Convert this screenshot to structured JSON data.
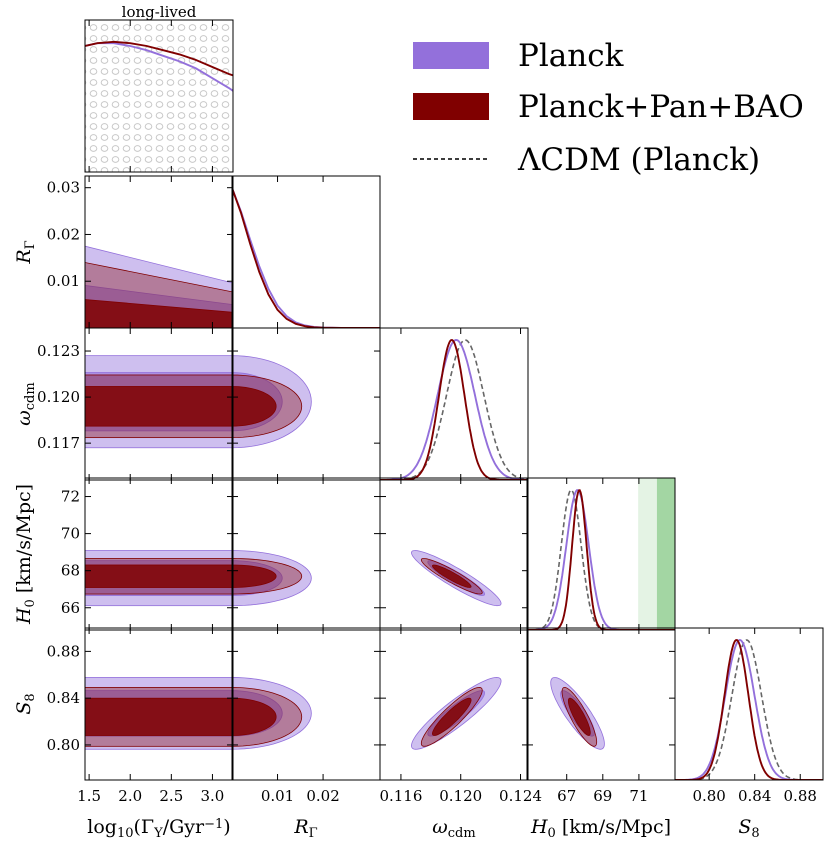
{
  "chart_data": {
    "type": "corner",
    "params": [
      "log10(Γ_Y/Gyr^-1)",
      "R_Γ",
      "ω_cdm",
      "H_0",
      "S_8"
    ],
    "axis_labels": {
      "log10G": {
        "main": "log",
        "sub1": "10",
        "mid": "(Γ",
        "sub2": "Y",
        "tail": "/Gyr",
        "sup": "−1",
        "end": ")"
      },
      "RG": {
        "main": "R",
        "sub": "Γ"
      },
      "wcdm": {
        "main": "ω",
        "sub": "cdm"
      },
      "H0": {
        "main": "H",
        "sub": "0",
        "unit": "[km/s/Mpc]"
      },
      "S8": {
        "main": "S",
        "sub": "8"
      }
    },
    "ranges": {
      "log10G": [
        1.45,
        3.25
      ],
      "RG": [
        0.0,
        0.0325
      ],
      "wcdm": [
        0.1146,
        0.1245
      ],
      "H0": [
        64.8,
        73.0
      ],
      "S8": [
        0.77,
        0.9
      ]
    },
    "ticks": {
      "log10G": [
        {
          "v": 1.5,
          "t": "1.5"
        },
        {
          "v": 2.0,
          "t": "2.0"
        },
        {
          "v": 2.5,
          "t": "2.5"
        },
        {
          "v": 3.0,
          "t": "3.0"
        }
      ],
      "RG": [
        {
          "v": 0.01,
          "t": "0.01"
        },
        {
          "v": 0.02,
          "t": "0.02"
        },
        {
          "v": 0.03,
          "t": "0.03"
        }
      ],
      "RG_x": [
        {
          "v": 0.01,
          "t": "0.01"
        },
        {
          "v": 0.02,
          "t": "0.02"
        }
      ],
      "wcdm": [
        {
          "v": 0.116,
          "t": "0.116"
        },
        {
          "v": 0.12,
          "t": "0.120"
        },
        {
          "v": 0.124,
          "t": "0.124"
        }
      ],
      "wcdm_y": [
        {
          "v": 0.117,
          "t": "0.117"
        },
        {
          "v": 0.12,
          "t": "0.120"
        },
        {
          "v": 0.123,
          "t": "0.123"
        }
      ],
      "H0_x": [
        {
          "v": 67,
          "t": "67"
        },
        {
          "v": 69,
          "t": "69"
        },
        {
          "v": 71,
          "t": "71"
        }
      ],
      "H0_y": [
        {
          "v": 66,
          "t": "66"
        },
        {
          "v": 68,
          "t": "68"
        },
        {
          "v": 70,
          "t": "70"
        },
        {
          "v": 72,
          "t": "72"
        }
      ],
      "S8": [
        {
          "v": 0.8,
          "t": "0.80"
        },
        {
          "v": 0.84,
          "t": "0.84"
        },
        {
          "v": 0.88,
          "t": "0.88"
        }
      ]
    },
    "prior_region_label": "long-lived",
    "legend": {
      "placement": "top-right",
      "entries": [
        {
          "label": "Planck",
          "color": "#9370DB",
          "style": "patch"
        },
        {
          "label": "Planck+Pan+BAO",
          "color": "#800000",
          "style": "patch"
        },
        {
          "label": "ΛCDM (Planck)",
          "color": "#333333",
          "style": "dashed"
        }
      ]
    },
    "series": [
      {
        "name": "Planck",
        "color": "#9370DB",
        "mean": {
          "log10G": 2.3,
          "RG": 0.0,
          "wcdm": 0.1197,
          "H0": 67.6,
          "S8": 0.827
        },
        "sigma": {
          "log10G": 0.6,
          "RG": 0.0066,
          "wcdm": 0.00125,
          "H0": 0.62,
          "S8": 0.0128
        },
        "marg_1d": {
          "log10G": {
            "x": [
              1.45,
              1.6,
              1.8,
              2.0,
              2.2,
              2.4,
              2.6,
              2.8,
              3.0,
              3.2,
              3.25
            ],
            "y": [
              0.9,
              0.92,
              0.92,
              0.9,
              0.87,
              0.83,
              0.79,
              0.74,
              0.67,
              0.6,
              0.58
            ]
          },
          "RG": {
            "x": [
              0.0,
              0.002,
              0.004,
              0.006,
              0.008,
              0.01,
              0.012,
              0.014,
              0.016,
              0.018,
              0.02,
              0.024,
              0.028,
              0.0325
            ],
            "y": [
              1.0,
              0.83,
              0.63,
              0.44,
              0.28,
              0.16,
              0.085,
              0.04,
              0.018,
              0.008,
              0.003,
              0.0006,
              0.0001,
              0.0
            ]
          }
        }
      },
      {
        "name": "Planck+Pan+BAO",
        "color": "#800000",
        "mean": {
          "log10G": 2.3,
          "RG": 0.0,
          "wcdm": 0.1194,
          "H0": 67.7,
          "S8": 0.824
        },
        "sigma": {
          "log10G": 0.6,
          "RG": 0.0058,
          "wcdm": 0.00085,
          "H0": 0.4,
          "S8": 0.0105
        },
        "marg_1d": {
          "log10G": {
            "x": [
              1.45,
              1.6,
              1.8,
              2.0,
              2.2,
              2.4,
              2.6,
              2.8,
              3.0,
              3.2,
              3.25
            ],
            "y": [
              0.9,
              0.92,
              0.93,
              0.92,
              0.9,
              0.87,
              0.84,
              0.8,
              0.75,
              0.7,
              0.69
            ]
          },
          "RG": {
            "x": [
              0.0,
              0.002,
              0.004,
              0.006,
              0.008,
              0.01,
              0.012,
              0.014,
              0.016,
              0.018,
              0.02,
              0.024,
              0.028,
              0.0325
            ],
            "y": [
              1.0,
              0.82,
              0.6,
              0.4,
              0.24,
              0.13,
              0.065,
              0.03,
              0.013,
              0.005,
              0.002,
              0.0003,
              0.0,
              0.0
            ]
          }
        }
      },
      {
        "name": "ΛCDM (Planck)",
        "color": "#666666",
        "mean": {
          "wcdm": 0.1203,
          "H0": 67.25,
          "S8": 0.833
        },
        "sigma": {
          "wcdm": 0.00125,
          "H0": 0.55,
          "S8": 0.013
        }
      }
    ],
    "contours": {
      "log10G_RG": {
        "Planck": [
          0.0175,
          0.0091
        ],
        "Planck+Pan+BAO": [
          0.014,
          0.0061
        ]
      },
      "correlations": {
        "wcdm_H0": -0.92,
        "wcdm_S8": 0.9,
        "H0_S8": -0.85
      }
    },
    "sh0es_band": {
      "H0_mean": 73.04,
      "H0_sigma": 1.04,
      "color": "#2ca02c"
    }
  }
}
